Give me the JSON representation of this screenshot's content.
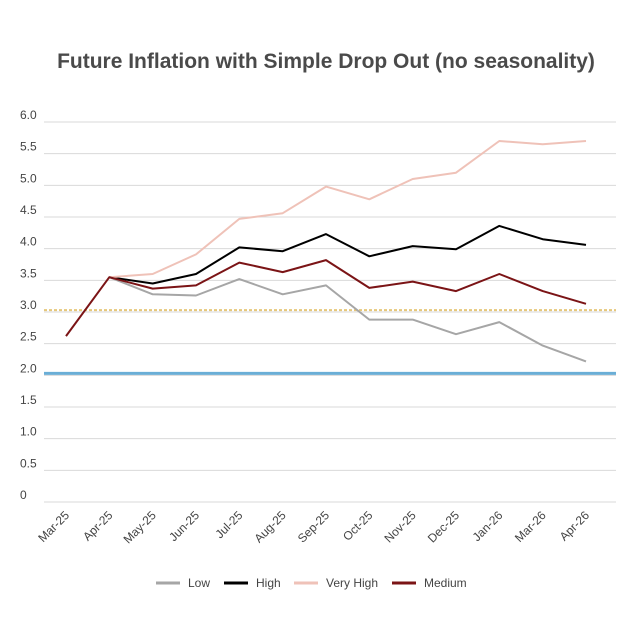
{
  "chart_data": {
    "type": "line",
    "title": "Future Inflation with Simple Drop Out (no seasonality)",
    "xlabel": "",
    "ylabel": "",
    "categories": [
      "Mar-25",
      "Apr-25",
      "May-25",
      "Jun-25",
      "Jul-25",
      "Aug-25",
      "Sep-25",
      "Oct-25",
      "Nov-25",
      "Dec-25",
      "Jan-26",
      "Mar-26",
      "Apr-26"
    ],
    "y_ticks": [
      "0",
      "0.5",
      "1.0",
      "1.5",
      "2.0",
      "2.5",
      "3.0",
      "3.5",
      "4.0",
      "4.5",
      "5.0",
      "5.5",
      "6.0"
    ],
    "ylim": [
      0,
      6.0
    ],
    "grid": true,
    "legend_position": "bottom",
    "series": [
      {
        "name": "Low",
        "color": "#a6a6a6",
        "values": [
          null,
          3.55,
          3.28,
          3.26,
          3.52,
          3.28,
          3.42,
          2.88,
          2.88,
          2.65,
          2.84,
          2.47,
          2.22
        ]
      },
      {
        "name": "High",
        "color": "#000000",
        "values": [
          null,
          3.55,
          3.45,
          3.6,
          4.02,
          3.96,
          4.23,
          3.88,
          4.04,
          3.99,
          4.36,
          4.15,
          4.06
        ]
      },
      {
        "name": "Very High",
        "color": "#efc2b8",
        "values": [
          null,
          3.55,
          3.6,
          3.91,
          4.47,
          4.56,
          4.98,
          4.78,
          5.1,
          5.2,
          5.7,
          5.65,
          5.7
        ]
      },
      {
        "name": "Medium",
        "color": "#7b1416",
        "values": [
          2.62,
          3.55,
          3.37,
          3.42,
          3.78,
          3.63,
          3.82,
          3.38,
          3.48,
          3.33,
          3.6,
          3.33,
          3.13
        ]
      }
    ],
    "reference_lines": [
      {
        "value": 3.03,
        "color": "#e6c77a",
        "style": "dashed"
      },
      {
        "value": 2.03,
        "color": "#6aaed6",
        "style": "solid"
      }
    ]
  }
}
